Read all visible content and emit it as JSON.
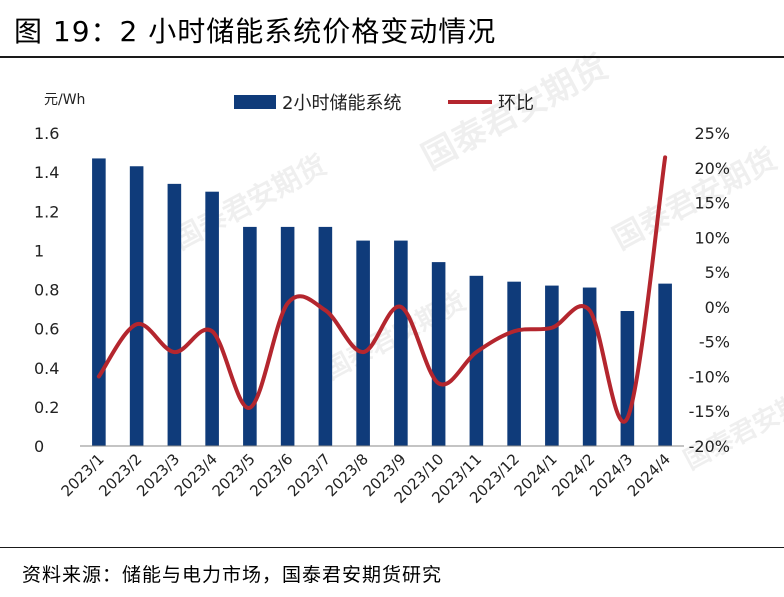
{
  "title": "图 19：2 小时储能系统价格变动情况",
  "source": "资料来源：储能与电力市场，国泰君安期货研究",
  "watermark": "国泰君安期货",
  "chart_data": {
    "type": "bar",
    "unit_left": "元/Wh",
    "categories": [
      "2023/1",
      "2023/2",
      "2023/3",
      "2023/4",
      "2023/5",
      "2023/6",
      "2023/7",
      "2023/8",
      "2023/9",
      "2023/10",
      "2023/11",
      "2023/12",
      "2024/1",
      "2024/2",
      "2024/3",
      "2024/4"
    ],
    "series": [
      {
        "name": "2小时储能系统",
        "type": "bar",
        "axis": "left",
        "color": "#0f3b7a",
        "values": [
          1.47,
          1.43,
          1.34,
          1.3,
          1.12,
          1.12,
          1.12,
          1.05,
          1.05,
          0.94,
          0.87,
          0.84,
          0.82,
          0.81,
          0.69,
          0.83
        ]
      },
      {
        "name": "环比",
        "type": "line",
        "axis": "right",
        "color": "#b4262e",
        "values": [
          -10,
          -2.5,
          -6.5,
          -3.5,
          -14.5,
          0.5,
          -0.5,
          -6.5,
          0,
          -11,
          -6.5,
          -3.5,
          -3,
          -0.5,
          -16,
          21.5
        ]
      }
    ],
    "y_left": {
      "min": 0,
      "max": 1.6,
      "ticks": [
        "0",
        "0.2",
        "0.4",
        "0.6",
        "0.8",
        "1",
        "1.2",
        "1.4",
        "1.6"
      ]
    },
    "y_right": {
      "min": -20,
      "max": 25,
      "ticks": [
        "-20%",
        "-15%",
        "-10%",
        "-5%",
        "0%",
        "5%",
        "10%",
        "15%",
        "20%",
        "25%"
      ]
    },
    "legend_position": "top",
    "grid": false
  }
}
